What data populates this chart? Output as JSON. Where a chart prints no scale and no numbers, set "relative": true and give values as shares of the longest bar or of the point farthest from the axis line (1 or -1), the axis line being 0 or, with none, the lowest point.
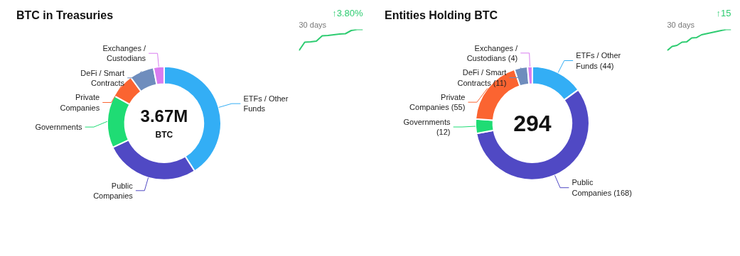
{
  "chart_data": [
    {
      "type": "donut",
      "title": "BTC in Treasuries",
      "categories": [
        "ETFs / Other Funds",
        "Public Companies",
        "Governments",
        "Private Companies",
        "DeFi / Smart Contracts",
        "Exchanges / Custodians"
      ],
      "values": [
        41,
        27,
        15,
        7,
        7,
        3
      ],
      "colors": [
        "#33aef5",
        "#5049c4",
        "#1fdc74",
        "#fb6431",
        "#6f8dbd",
        "#d97cf0"
      ],
      "annotations": [
        "3.67M",
        "BTC"
      ]
    },
    {
      "type": "line",
      "relative": true,
      "title": "30 days",
      "categories": [
        null,
        null,
        null,
        null,
        null,
        null,
        null,
        null,
        null,
        null,
        null,
        null
      ],
      "values": [
        0,
        0.4,
        0.42,
        0.45,
        0.7,
        0.72,
        0.75,
        0.78,
        0.8,
        0.95,
        1,
        1
      ],
      "color": "#2ecc71",
      "annotations": [
        "↑3.80%"
      ]
    },
    {
      "type": "donut",
      "title": "Entities Holding BTC",
      "categories": [
        "ETFs / Other Funds",
        "Public Companies",
        "Governments",
        "Private Companies",
        "DeFi / Smart Contracts",
        "Exchanges / Custodians"
      ],
      "values": [
        44,
        168,
        12,
        55,
        11,
        4
      ],
      "colors": [
        "#33aef5",
        "#5049c4",
        "#1fdc74",
        "#fb6431",
        "#6f8dbd",
        "#d97cf0"
      ],
      "value_labels": [
        "(44)",
        "(168)",
        "(12)",
        "(55)",
        "(11)",
        "(4)"
      ],
      "annotations": [
        "294"
      ]
    },
    {
      "type": "line",
      "relative": true,
      "title": "30 days",
      "categories": [
        null,
        null,
        null,
        null,
        null,
        null,
        null,
        null,
        null,
        null,
        null,
        null,
        null,
        null
      ],
      "values": [
        0,
        0.2,
        0.25,
        0.4,
        0.42,
        0.6,
        0.62,
        0.75,
        0.8,
        0.85,
        0.9,
        0.95,
        1,
        1
      ],
      "color": "#2ecc71",
      "annotations": [
        "↑15"
      ]
    }
  ]
}
